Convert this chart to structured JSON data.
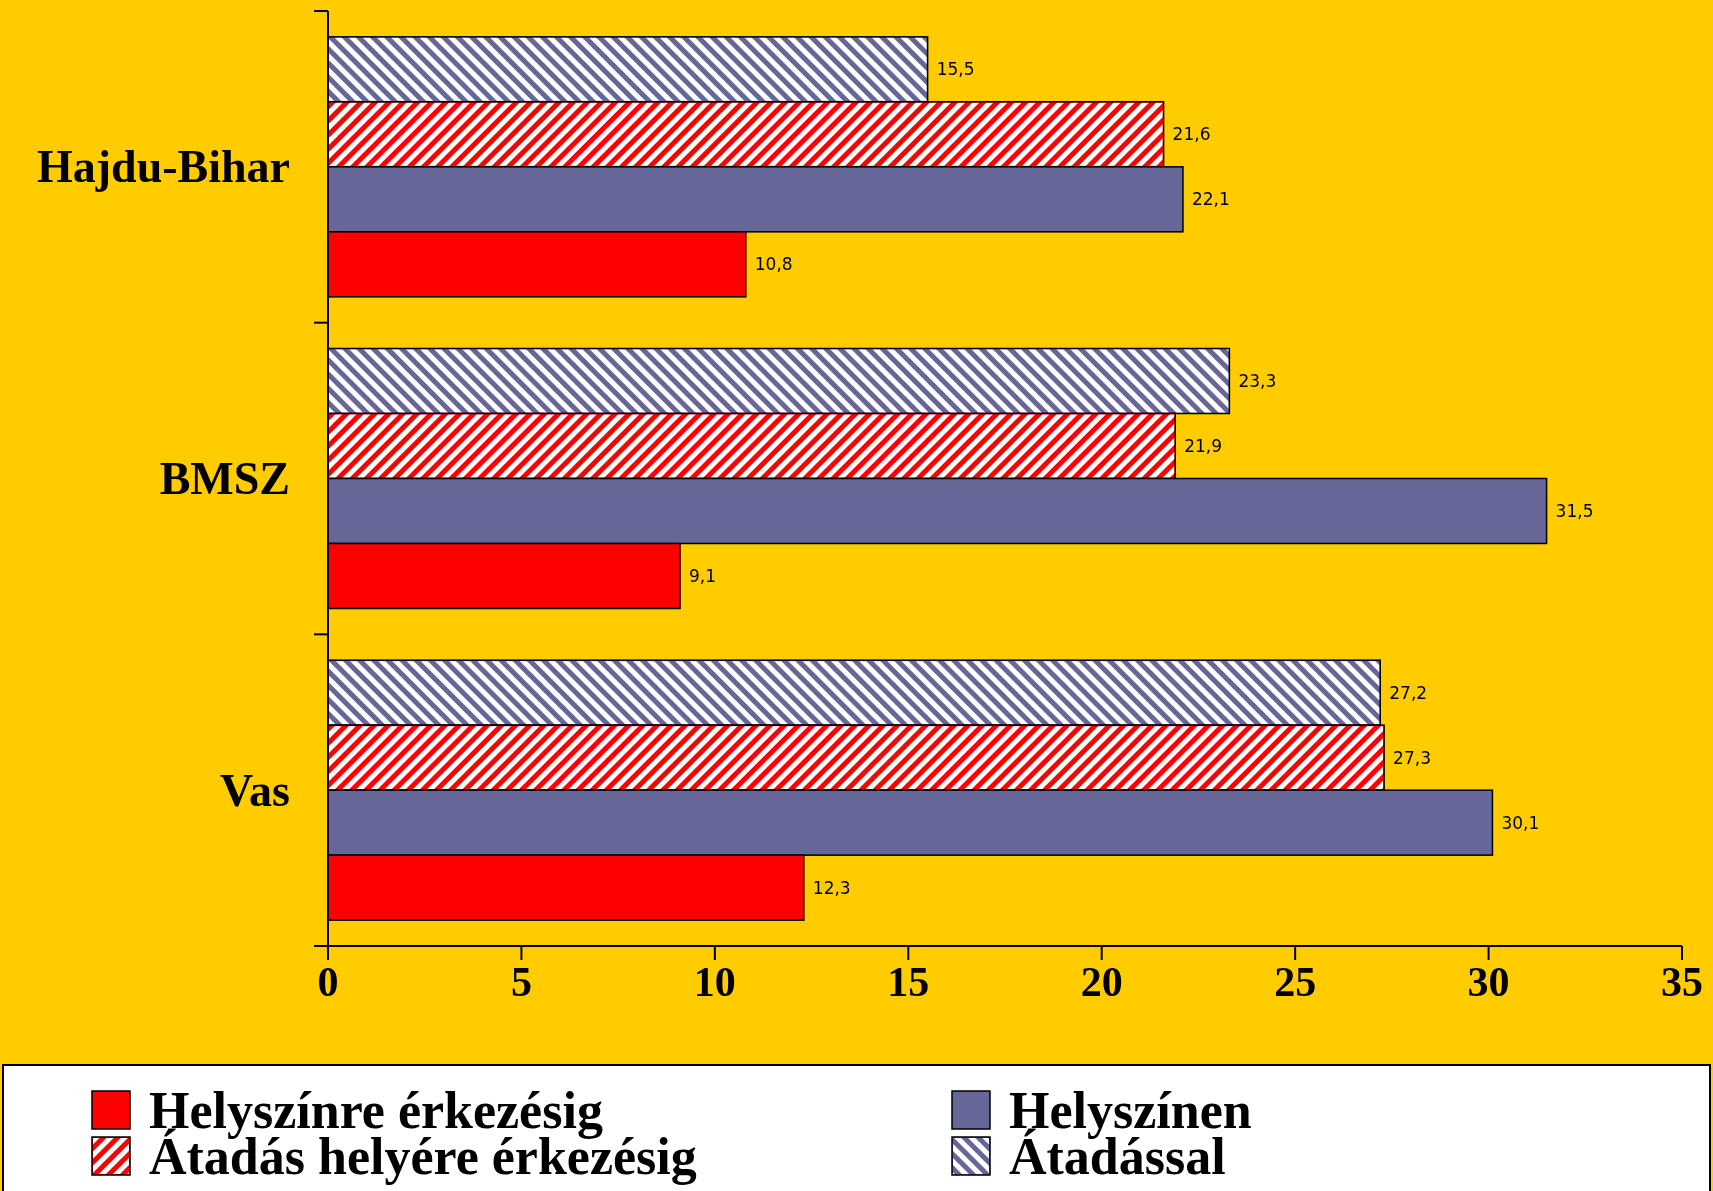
{
  "chart_data": {
    "type": "bar",
    "orientation": "horizontal",
    "categories": [
      "Hajdu-Bihar",
      "BMSZ",
      "Vas"
    ],
    "series": [
      {
        "name": "Átadással",
        "color": "#666699",
        "values": [
          15.5,
          23.3,
          27.2
        ],
        "value_labels": [
          "15,5",
          "23,3",
          "27,2"
        ]
      },
      {
        "name": "Átadás helyére érkezésig",
        "color": "#ff0000",
        "values": [
          21.6,
          21.9,
          27.3
        ],
        "value_labels": [
          "21,6",
          "21,9",
          "27,3"
        ]
      },
      {
        "name": "Helyszínen",
        "color": "#666699",
        "values": [
          22.1,
          31.5,
          30.1
        ],
        "value_labels": [
          "22,1",
          "31,5",
          "30,1"
        ]
      },
      {
        "name": "Helyszínre érkezésig",
        "color": "#ff0000",
        "values": [
          10.8,
          9.1,
          12.3
        ],
        "value_labels": [
          "10,8",
          "9,1",
          "12,3"
        ]
      }
    ],
    "xlim": [
      0,
      35
    ],
    "xticks": [
      0,
      5,
      10,
      15,
      20,
      25,
      30,
      35
    ],
    "grid": false,
    "legend": "bottom"
  }
}
